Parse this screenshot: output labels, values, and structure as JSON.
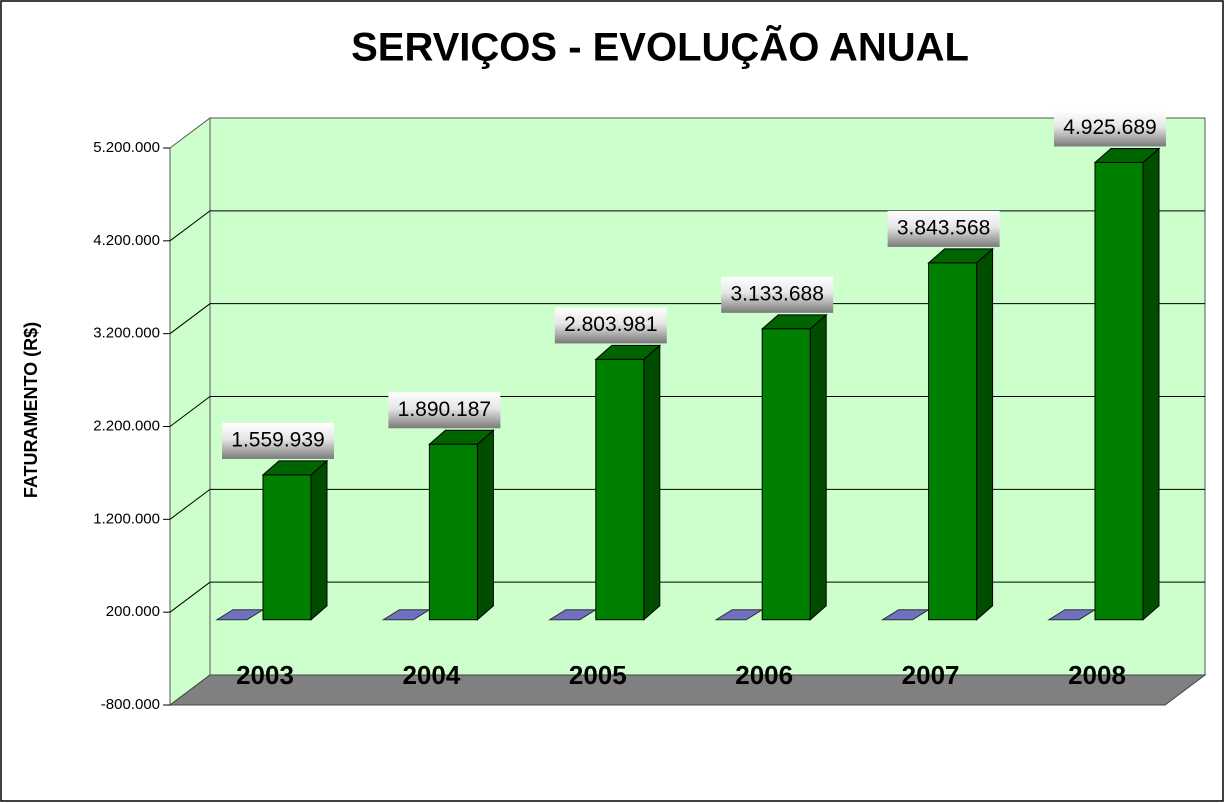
{
  "chart_data": {
    "type": "bar3d",
    "title": "SERVIÇOS - EVOLUÇÃO ANUAL",
    "y_label": "FATURAMENTO (R$)",
    "categories": [
      "2003",
      "2004",
      "2005",
      "2006",
      "2007",
      "2008"
    ],
    "values": [
      1559939,
      1890187,
      2803981,
      3133688,
      3843568,
      4925689
    ],
    "value_labels": [
      "1.559.939",
      "1.890.187",
      "2.803.981",
      "3.133.688",
      "3.843.568",
      "4.925.689"
    ],
    "color": "#008000",
    "ylim": [
      -800000,
      5200000
    ],
    "yticks": [
      {
        "value": -800000,
        "label": "-800.000"
      },
      {
        "value": 200000,
        "label": "200.000"
      },
      {
        "value": 1200000,
        "label": "1.200.000"
      },
      {
        "value": 2200000,
        "label": "2.200.000"
      },
      {
        "value": 3200000,
        "label": "3.200.000"
      },
      {
        "value": 4200000,
        "label": "4.200.000"
      },
      {
        "value": 5200000,
        "label": "5.200.000"
      }
    ],
    "grid": true
  }
}
